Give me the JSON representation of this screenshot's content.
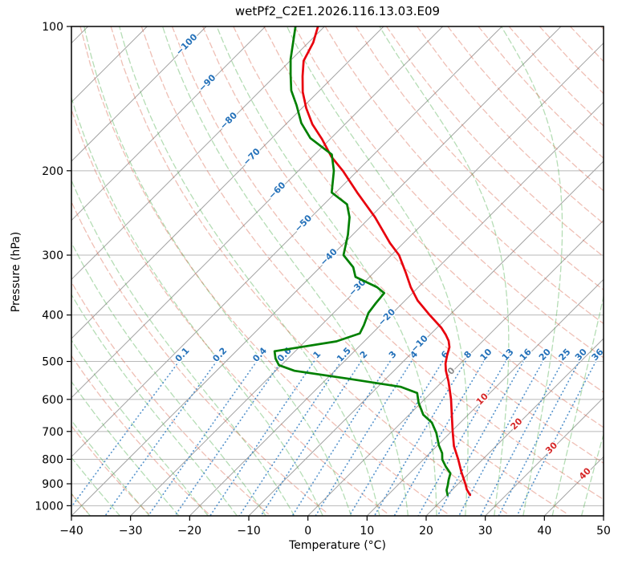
{
  "chart_data": {
    "type": "skewt-log-p",
    "title": "wetPf2_C2E1.2026.116.13.03.E09",
    "xlabel": "Temperature (°C)",
    "ylabel": "Pressure (hPa)",
    "x_range_c": [
      -40,
      50
    ],
    "x_ticks_c": [
      -40,
      -30,
      -20,
      -10,
      0,
      10,
      20,
      30,
      40,
      50
    ],
    "pressure_ticks_hpa": [
      100,
      200,
      300,
      400,
      500,
      600,
      700,
      800,
      900,
      1000
    ],
    "pressure_range_hpa": [
      100,
      1050
    ],
    "skew_deg": 45,
    "grid_on": true,
    "isotherms_c": {
      "min": -120,
      "max": 50,
      "step": 10
    },
    "isotherm_labels": [
      [
        -100,
        55
      ],
      [
        -90,
        103
      ],
      [
        -80,
        150
      ],
      [
        -70,
        195
      ],
      [
        -60,
        237
      ],
      [
        -50,
        278
      ],
      [
        -40,
        320
      ],
      [
        -30,
        358
      ],
      [
        -20,
        395
      ],
      [
        -10,
        428
      ],
      [
        0,
        462
      ],
      [
        10,
        497
      ],
      [
        20,
        528
      ],
      [
        30,
        558
      ],
      [
        40,
        590
      ]
    ],
    "dry_adiabats_c": {
      "min": -40,
      "max": 190,
      "step": 10
    },
    "moist_adiabats_c": {
      "min": -40,
      "max": 50,
      "step": 5
    },
    "mixing_ratios_g_kg": [
      0.1,
      0.2,
      0.4,
      0.6,
      1,
      1.5,
      2,
      3,
      4,
      6,
      8,
      10,
      13,
      16,
      20,
      25,
      30,
      36
    ],
    "mixing_label_pressure_hpa": 483,
    "mixing_line_pressure_span_hpa": [
      500,
      1050
    ],
    "series": [
      {
        "name": "temperature",
        "color": "#e8000d",
        "points_p_t": [
          [
            100,
            -81.1
          ],
          [
            108,
            -79.2
          ],
          [
            118,
            -77.7
          ],
          [
            127,
            -75.3
          ],
          [
            137,
            -72.6
          ],
          [
            148,
            -69.3
          ],
          [
            160,
            -65.5
          ],
          [
            172,
            -61.3
          ],
          [
            187,
            -56.8
          ],
          [
            200,
            -52.5
          ],
          [
            222,
            -46.4
          ],
          [
            250,
            -39.2
          ],
          [
            283,
            -32.3
          ],
          [
            300,
            -28.7
          ],
          [
            327,
            -24.5
          ],
          [
            350,
            -21.3
          ],
          [
            373,
            -17.9
          ],
          [
            400,
            -13.4
          ],
          [
            425,
            -9.3
          ],
          [
            440,
            -7.3
          ],
          [
            453,
            -5.8
          ],
          [
            467,
            -4.6
          ],
          [
            486,
            -3.6
          ],
          [
            505,
            -2.5
          ],
          [
            523,
            -1.2
          ],
          [
            550,
            1.0
          ],
          [
            575,
            2.8
          ],
          [
            600,
            4.5
          ],
          [
            649,
            7.4
          ],
          [
            700,
            10.2
          ],
          [
            751,
            12.9
          ],
          [
            801,
            15.9
          ],
          [
            850,
            18.5
          ],
          [
            900,
            21.2
          ],
          [
            925,
            22.4
          ],
          [
            950,
            23.9
          ]
        ]
      },
      {
        "name": "dewpoint",
        "color": "#008000",
        "points_p_t": [
          [
            100,
            -84.9
          ],
          [
            108,
            -82.6
          ],
          [
            117,
            -80.2
          ],
          [
            126,
            -77.6
          ],
          [
            136,
            -74.8
          ],
          [
            146,
            -71.4
          ],
          [
            159,
            -67.6
          ],
          [
            171,
            -63.5
          ],
          [
            185,
            -57.1
          ],
          [
            200,
            -54.0
          ],
          [
            222,
            -50.7
          ],
          [
            235,
            -46.1
          ],
          [
            250,
            -43.5
          ],
          [
            272,
            -40.8
          ],
          [
            300,
            -38.1
          ],
          [
            318,
            -34.4
          ],
          [
            333,
            -32.4
          ],
          [
            350,
            -27.0
          ],
          [
            360,
            -24.8
          ],
          [
            378,
            -24.5
          ],
          [
            396,
            -24.1
          ],
          [
            420,
            -22.8
          ],
          [
            437,
            -22.1
          ],
          [
            454,
            -24.7
          ],
          [
            465,
            -29.1
          ],
          [
            476,
            -33.5
          ],
          [
            493,
            -32.1
          ],
          [
            509,
            -30.4
          ],
          [
            523,
            -26.8
          ],
          [
            543,
            -16.5
          ],
          [
            565,
            -6.1
          ],
          [
            582,
            -2.3
          ],
          [
            610,
            -0.4
          ],
          [
            646,
            2.4
          ],
          [
            671,
            5.2
          ],
          [
            705,
            7.7
          ],
          [
            748,
            10.2
          ],
          [
            777,
            12.1
          ],
          [
            801,
            13.2
          ],
          [
            829,
            15.0
          ],
          [
            856,
            16.9
          ],
          [
            883,
            17.7
          ],
          [
            907,
            18.5
          ],
          [
            928,
            19.1
          ],
          [
            950,
            20.1
          ]
        ]
      }
    ],
    "colors": {
      "isobar_grid": "#b8b8b8",
      "isotherm_line": "#a3a3a3",
      "dry_adiabat": "#d65f46",
      "moist_adiabat": "#4fae4f",
      "mixing_line": "#3b82c4",
      "isotherm_label_neg": "#2471b9",
      "isotherm_label_zero": "#8c8c8c",
      "isotherm_label_pos": "#d62728",
      "mixing_label": "#2471b9",
      "spine": "#000000"
    }
  }
}
